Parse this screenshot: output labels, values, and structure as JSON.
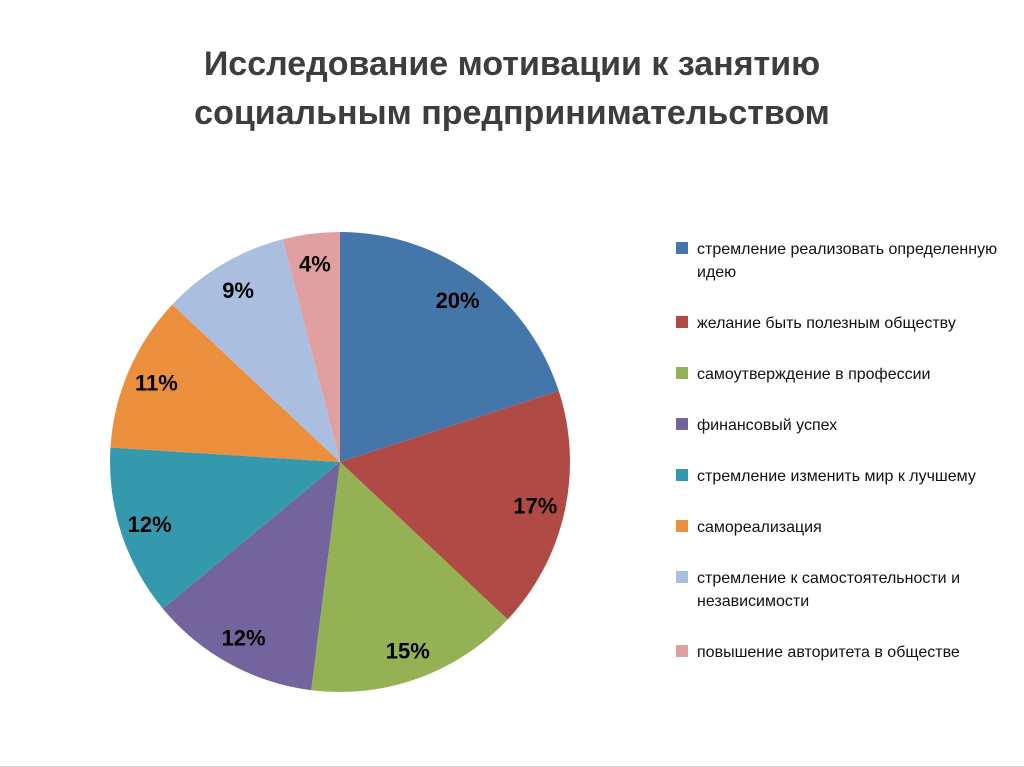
{
  "chart_data": {
    "type": "pie",
    "title": "Исследование мотивации к занятию социальным предпринимательством",
    "categories": [
      "стремление реализовать определенную идею",
      "желание быть полезным обществу",
      "самоутверждение в профессии",
      "финансовый успех",
      "стремление изменить мир к лучшему",
      "самореализация",
      "стремление к самостоятельности и независимости",
      "повышение авторитета в обществе"
    ],
    "values": [
      20,
      17,
      15,
      12,
      12,
      11,
      9,
      4
    ],
    "unit": "%",
    "data_labels": [
      "20%",
      "17%",
      "15%",
      "12%",
      "12%",
      "11%",
      "9%",
      "4%"
    ],
    "colors": [
      "#4576A9",
      "#AF4B44",
      "#94B254",
      "#74649E",
      "#3599AE",
      "#EC8F3D",
      "#AABFDF",
      "#E0A0A2"
    ],
    "legend_position": "right",
    "start_angle_deg": 0,
    "direction": "clockwise",
    "grid": false
  }
}
